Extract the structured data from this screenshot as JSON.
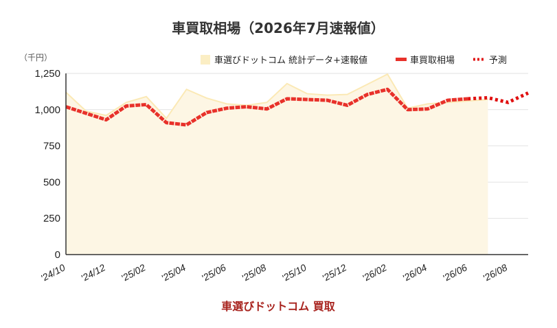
{
  "chart_data": {
    "type": "line",
    "title": "車買取相場（2026年7月速報値）",
    "unit": "（千円）",
    "footer": "車選びドットコム 買取",
    "ylim": [
      0,
      1250
    ],
    "yticks": [
      "0",
      "250",
      "500",
      "750",
      "1,000",
      "1,250"
    ],
    "ytick_values": [
      0,
      250,
      500,
      750,
      1000,
      1250
    ],
    "xlabels": [
      "'24/10",
      "'24/12",
      "'25/02",
      "'25/04",
      "'25/06",
      "'25/08",
      "'25/10",
      "'25/12",
      "'26/02",
      "'26/04",
      "'26/06",
      "'26/08"
    ],
    "x": [
      "2024-10",
      "2024-11",
      "2024-12",
      "2025-01",
      "2025-02",
      "2025-03",
      "2025-04",
      "2025-05",
      "2025-06",
      "2025-07",
      "2025-08",
      "2025-09",
      "2025-10",
      "2025-11",
      "2025-12",
      "2026-01",
      "2026-02",
      "2026-03",
      "2026-04",
      "2026-05",
      "2026-06",
      "2026-07",
      "2026-08",
      "2026-09"
    ],
    "grid": true,
    "legend_position": "top-right",
    "colors": {
      "area_fill": "#fdf6e4",
      "area_line": "#fbe9b5",
      "main_line": "#e8312a",
      "forecast": "#e01010",
      "grid": "#e2e2e2"
    },
    "series": [
      {
        "name": "車選びドットコム 統計データ+速報値",
        "kind": "area",
        "values": [
          1120,
          990,
          960,
          1050,
          1090,
          940,
          1140,
          1080,
          1040,
          1030,
          1050,
          1180,
          1110,
          1100,
          1105,
          1175,
          1245,
          1010,
          1040,
          1050,
          1060,
          1070,
          null,
          null
        ]
      },
      {
        "name": "車買取相場",
        "kind": "line",
        "values": [
          1020,
          975,
          930,
          1025,
          1035,
          910,
          895,
          980,
          1010,
          1020,
          1005,
          1075,
          1070,
          1065,
          1030,
          1105,
          1140,
          1000,
          1005,
          1065,
          1075,
          null,
          null,
          null
        ]
      },
      {
        "name": "予測",
        "kind": "forecast",
        "values": [
          null,
          null,
          null,
          null,
          null,
          null,
          null,
          null,
          null,
          null,
          null,
          null,
          null,
          null,
          null,
          null,
          null,
          null,
          null,
          null,
          1075,
          1082,
          1050,
          1115
        ]
      }
    ]
  }
}
